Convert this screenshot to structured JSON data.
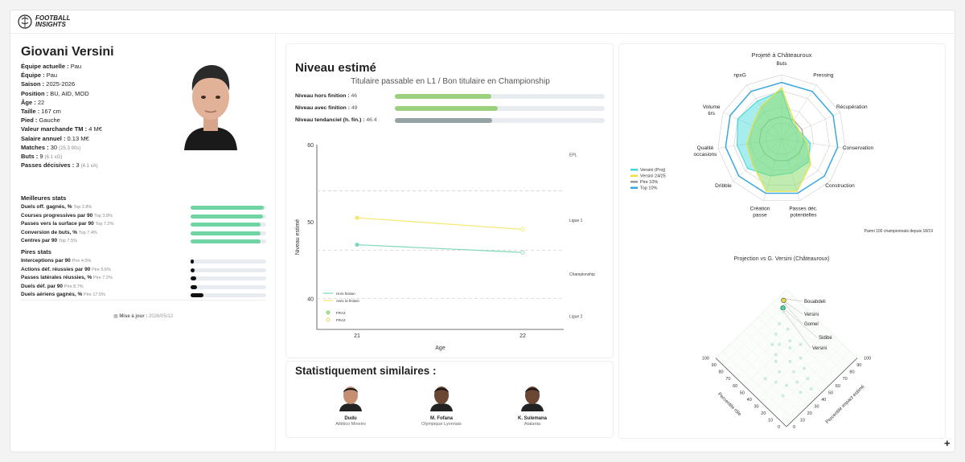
{
  "header": {
    "logo_line1": "FOOTBALL",
    "logo_line2": "INSIGHTS"
  },
  "player": {
    "name": "Giovani Versini",
    "info": [
      {
        "label": "Équipe actuelle :",
        "value": "Pau",
        "extra": ""
      },
      {
        "label": "Équipe :",
        "value": "Pau",
        "extra": ""
      },
      {
        "label": "Saison :",
        "value": "2025-2026",
        "extra": ""
      },
      {
        "label": "Position :",
        "value": "BU, AID, MOD",
        "extra": ""
      },
      {
        "label": "Âge :",
        "value": "22",
        "extra": ""
      },
      {
        "label": "Taille :",
        "value": "167 cm",
        "extra": ""
      },
      {
        "label": "Pied :",
        "value": "Gauche",
        "extra": ""
      },
      {
        "label": "Valeur marchande TM :",
        "value": "4 M€",
        "extra": ""
      },
      {
        "label": "Salaire annuel :",
        "value": "0.13 M€",
        "extra": ""
      },
      {
        "label": "Matches :",
        "value": "30",
        "extra": "(25.3 90s)"
      },
      {
        "label": "Buts :",
        "value": "9",
        "extra": "(6.1 xG)"
      },
      {
        "label": "Passes décisives :",
        "value": "3",
        "extra": "(4.1 xA)"
      }
    ]
  },
  "best_stats": {
    "title": "Meilleures stats",
    "items": [
      {
        "label": "Duels off. gagnés, %",
        "rank": "Top 2.8%",
        "pct": 97.2
      },
      {
        "label": "Courses progressives par 90",
        "rank": "Top 3.8%",
        "pct": 96.2
      },
      {
        "label": "Passes vers la surface par 90",
        "rank": "Top 7.2%",
        "pct": 92.8
      },
      {
        "label": "Conversion de buts, %",
        "rank": "Top 7.4%",
        "pct": 92.6
      },
      {
        "label": "Centres par 90",
        "rank": "Top 7.5%",
        "pct": 92.5
      }
    ]
  },
  "worst_stats": {
    "title": "Pires stats",
    "items": [
      {
        "label": "Interceptions par 90",
        "rank": "Pire 4.0%",
        "pct": 4.0
      },
      {
        "label": "Actions déf. réussies par 90",
        "rank": "Pire 5.6%",
        "pct": 5.6
      },
      {
        "label": "Passes latérales réussies, %",
        "rank": "Pire 7.2%",
        "pct": 7.2
      },
      {
        "label": "Duels déf. par 90",
        "rank": "Pire 8.7%",
        "pct": 8.7
      },
      {
        "label": "Duels aériens gagnés, %",
        "rank": "Pire 17.5%",
        "pct": 17.5
      }
    ]
  },
  "update": {
    "label": "Mise à jour :",
    "date": "2026/05/12"
  },
  "niveau": {
    "title": "Niveau estimé",
    "subtitle": "Titulaire passable en L1 / Bon titulaire en Championship",
    "rows": [
      {
        "label": "Niveau hors finition :",
        "value": "46",
        "fill": 46,
        "color": "#9bd17c"
      },
      {
        "label": "Niveau avec finition :",
        "value": "49",
        "fill": 49,
        "color": "#9bd17c"
      },
      {
        "label": "Niveau tendanciel (h. fin.) :",
        "value": "46.4",
        "fill": 46.4,
        "color": "#95a3a6"
      }
    ]
  },
  "chart_data": [
    {
      "type": "line",
      "ylabel": "Niveau estimé",
      "xlabel": "Age",
      "x": [
        21,
        22
      ],
      "ylim": [
        36,
        60
      ],
      "yticks": [
        40,
        50,
        60
      ],
      "series": [
        {
          "name": "Hors finition",
          "values": [
            47,
            46
          ],
          "color": "#7fd8b4",
          "points": [
            "FRA3",
            "FRA2"
          ]
        },
        {
          "name": "Avec la finition",
          "values": [
            50.5,
            49
          ],
          "color": "#f7e76a",
          "points": [
            "FRA3",
            "FRA2"
          ]
        }
      ],
      "point_legend": [
        "FRA3",
        "FRA2"
      ],
      "levels": [
        {
          "name": "EPL",
          "y": 58.5
        },
        {
          "name": "Ligue 1",
          "y": 50
        },
        {
          "name": "Championship",
          "y": 43
        },
        {
          "name": "Ligue 2",
          "y": 37.5
        }
      ],
      "reference_lines": [
        54,
        46.3,
        40
      ]
    },
    {
      "type": "radar",
      "title": "Projeté à Châteauroux",
      "axes": [
        "Buts",
        "Pressing",
        "Récupération",
        "Conservation",
        "Construction",
        "Passes déc. potentielles",
        "Création passe",
        "Dribble",
        "Qualité occasions",
        "Volume tirs",
        "npxG"
      ],
      "series": [
        {
          "name": "Versini (Proj)",
          "color": "#3fd8d8",
          "values": [
            0.75,
            0.3,
            0.3,
            0.45,
            0.55,
            0.55,
            0.6,
            0.7,
            0.7,
            0.75,
            0.7
          ]
        },
        {
          "name": "Versini 24/25",
          "color": "#f0e040",
          "values": [
            0.8,
            0.35,
            0.3,
            0.4,
            0.6,
            0.85,
            0.85,
            0.6,
            0.55,
            0.5,
            0.6
          ]
        },
        {
          "name": "Pire 10%",
          "color": "#999999",
          "values": [
            0.35,
            0.35,
            0.35,
            0.35,
            0.35,
            0.35,
            0.35,
            0.35,
            0.35,
            0.35,
            0.35
          ]
        },
        {
          "name": "Top 10%",
          "color": "#3aa7e0",
          "values": [
            0.88,
            0.88,
            0.88,
            0.88,
            0.88,
            0.88,
            0.88,
            0.88,
            0.88,
            0.88,
            0.88
          ]
        }
      ],
      "footnote": "Parmi 100 championnats depuis 18/19"
    },
    {
      "type": "scatter",
      "title": "Projection vs G. Versini (Châteauroux)",
      "xlabel": "Percentile impact estimé",
      "ylabel": "Percentile rôle",
      "ticks": [
        0,
        10,
        20,
        30,
        40,
        50,
        60,
        70,
        80,
        90,
        100
      ],
      "ticks_shown": [
        "0",
        "10",
        "20",
        "30",
        "40",
        "50",
        "60",
        "70",
        "80",
        "90",
        "100"
      ],
      "highlights": [
        {
          "name": "Bouabdeli",
          "role": 96,
          "impact": 91
        },
        {
          "name": "Versini",
          "role": 94,
          "impact": 90,
          "color": "#f0e040"
        },
        {
          "name": "Gomel",
          "role": 90,
          "impact": 88
        },
        {
          "name": "Sidibé",
          "role": 89,
          "impact": 84,
          "color": "#3fd8a8"
        },
        {
          "name": "Versini",
          "role": 86,
          "impact": 82
        }
      ],
      "points": [
        [
          80,
          70
        ],
        [
          75,
          60
        ],
        [
          70,
          72
        ],
        [
          65,
          55
        ],
        [
          60,
          65
        ],
        [
          55,
          60
        ],
        [
          50,
          70
        ],
        [
          45,
          50
        ],
        [
          40,
          60
        ],
        [
          35,
          45
        ],
        [
          30,
          55
        ],
        [
          25,
          40
        ],
        [
          20,
          50
        ],
        [
          15,
          35
        ],
        [
          10,
          45
        ],
        [
          30,
          30
        ],
        [
          45,
          35
        ],
        [
          60,
          45
        ],
        [
          70,
          50
        ],
        [
          55,
          40
        ],
        [
          40,
          25
        ],
        [
          25,
          20
        ],
        [
          50,
          20
        ]
      ]
    }
  ],
  "similar": {
    "title": "Statistiquement similaires :",
    "players": [
      {
        "name": "Dudu",
        "club": "Atlético Mineiro"
      },
      {
        "name": "M. Fofana",
        "club": "Olympique Lyonnais"
      },
      {
        "name": "K. Sulemana",
        "club": "Atalanta"
      }
    ]
  },
  "fab_label": "+"
}
